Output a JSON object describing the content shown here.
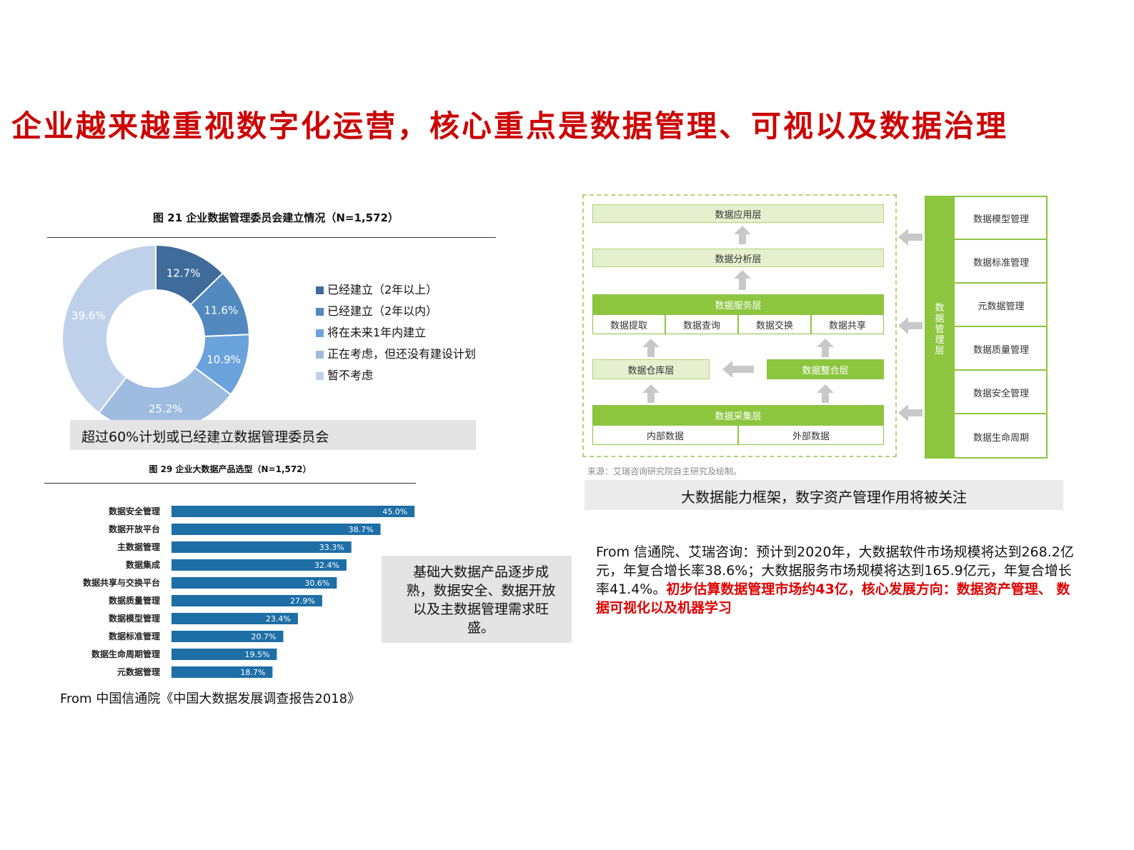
{
  "title": "企业越来越重视数字化运营，核心重点是数据管理、可视以及数据治理",
  "pie": {
    "title": "图 21  企业数据管理委员会建立情况（N=1,572）",
    "callout": "超过60%计划或已经建立数据管理委员会"
  },
  "bars": {
    "title": "图 29  企业大数据产品选型（N=1,572）",
    "callout": "基础大数据产品逐步成熟，数据安全、数据开放以及主数据管理需求旺盛。",
    "source": "From 中国信通院《中国大数据发展调查报告2018》"
  },
  "framework": {
    "layers": {
      "app": "数据应用层",
      "analysis": "数据分析层",
      "service": "数据服务层",
      "warehouse": "数据仓库层",
      "integration": "数据整合层",
      "collection": "数据采集层"
    },
    "service_items": [
      "数据提取",
      "数据查询",
      "数据交换",
      "数据共享"
    ],
    "collection_items": [
      "内部数据",
      "外部数据"
    ],
    "mgmt_label": "数据管理层",
    "mgmt_items": [
      "数据模型管理",
      "数据标准管理",
      "元数据管理",
      "数据质量管理",
      "数据安全管理",
      "数据生命周期"
    ],
    "source": "来源：艾瑞咨询研究院自主研究及绘制。",
    "caption": "大数据能力框架，数字资产管理作用将被关注"
  },
  "paragraph": {
    "normal": "From 信通院、艾瑞咨询：预计到2020年，大数据软件市场规模将达到268.2亿元，年复合增长率38.6%；大数据服务市场规模将达到165.9亿元，年复合增长率41.4%。",
    "highlight": "初步估算数据管理市场约43亿，核心发展方向：数据资产管理、 数据可视化以及机器学习"
  },
  "chart_data": [
    {
      "type": "pie",
      "title": "图 21  企业数据管理委员会建立情况（N=1,572）",
      "categories": [
        "已经建立（2年以上）",
        "已经建立（2年以内）",
        "将在未来1年内建立",
        "正在考虑，但还没有建设计划",
        "暂不考虑"
      ],
      "values": [
        12.7,
        11.6,
        10.9,
        25.2,
        39.6
      ],
      "value_labels": [
        "12.7%",
        "11.6%",
        "10.9%",
        "25.2%",
        "39.6%"
      ],
      "colors": [
        "#3f6b9a",
        "#5289bf",
        "#6aa3dc",
        "#9ebbe0",
        "#bfd1ea"
      ],
      "legend": "right",
      "donut": true
    },
    {
      "type": "bar",
      "orientation": "horizontal",
      "title": "图 29  企业大数据产品选型（N=1,572）",
      "categories": [
        "数据安全管理",
        "数据开放平台",
        "主数据管理",
        "数据集成",
        "数据共享与交换平台",
        "数据质量管理",
        "数据模型管理",
        "数据标准管理",
        "数据生命周期管理",
        "元数据管理"
      ],
      "values": [
        45.0,
        38.7,
        33.3,
        32.4,
        30.6,
        27.9,
        23.4,
        20.7,
        19.5,
        18.7
      ],
      "value_labels": [
        "45.0%",
        "38.7%",
        "33.3%",
        "32.4%",
        "30.6%",
        "27.9%",
        "23.4%",
        "20.7%",
        "19.5%",
        "18.7%"
      ],
      "color": "#1e6fa6",
      "xlim": [
        0,
        50
      ]
    }
  ]
}
